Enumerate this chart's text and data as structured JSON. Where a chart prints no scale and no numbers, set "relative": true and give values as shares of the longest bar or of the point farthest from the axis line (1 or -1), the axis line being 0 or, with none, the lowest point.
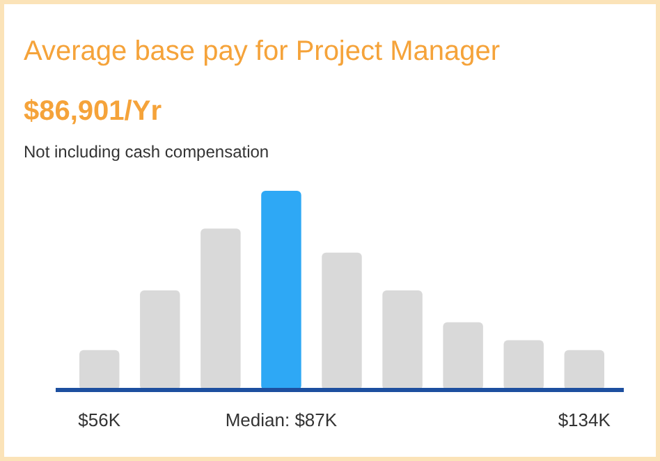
{
  "chart_data": {
    "type": "bar",
    "title": "Average base pay for Project Manager",
    "subtitle": "$86,901/Yr",
    "annotations": [
      "Not including cash compensation"
    ],
    "relative": true,
    "categories": [
      "$56K",
      null,
      null,
      "Median: $87K",
      null,
      null,
      null,
      null,
      "$134K"
    ],
    "values": [
      0.2,
      0.5,
      0.81,
      1,
      0.69,
      0.5,
      0.34,
      0.25,
      0.2
    ],
    "colors": [
      "#d9d9d9",
      "#d9d9d9",
      "#d9d9d9",
      "#2ea8f5",
      "#d9d9d9",
      "#d9d9d9",
      "#d9d9d9",
      "#d9d9d9",
      "#d9d9d9"
    ]
  }
}
